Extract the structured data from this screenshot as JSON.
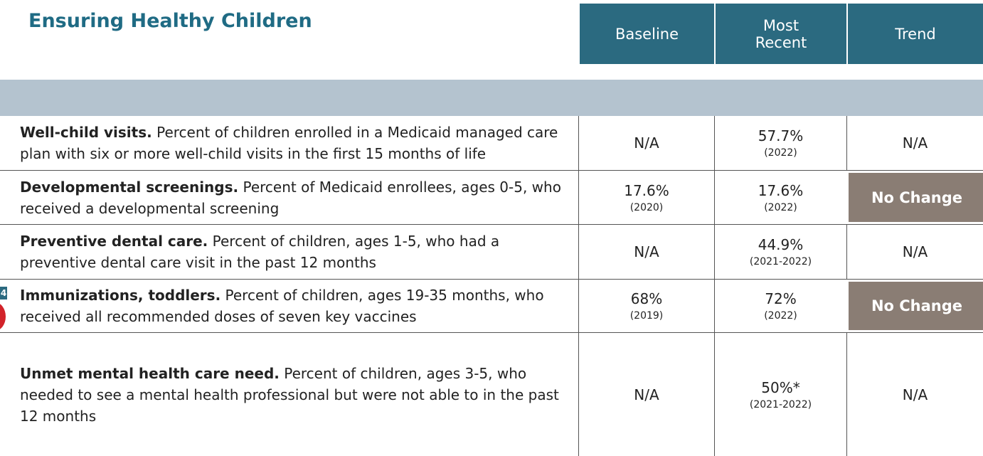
{
  "header": {
    "title": "Ensuring Healthy Children",
    "columns": [
      "Baseline",
      "Most Recent",
      "Trend"
    ]
  },
  "page_marker": "4",
  "rows": [
    {
      "name": "Well-child visits.",
      "description": "Percent of children enrolled in a Medicaid managed care plan with six or more well-child visits in the first 15 months of life",
      "baseline": {
        "value": "N/A"
      },
      "recent": {
        "value": "57.7%",
        "year": "(2022)"
      },
      "trend": "N/A"
    },
    {
      "name": "Developmental screenings.",
      "description": "Percent of Medicaid enrollees, ages 0-5, who received a developmental screening",
      "baseline": {
        "value": "17.6%",
        "year": "(2020)"
      },
      "recent": {
        "value": "17.6%",
        "year": "(2022)"
      },
      "trend": "No Change"
    },
    {
      "name": "Preventive dental care.",
      "description": "Percent of children, ages 1-5, who had a preventive dental care visit in the past 12 months",
      "baseline": {
        "value": "N/A"
      },
      "recent": {
        "value": "44.9%",
        "year": "(2021-2022)"
      },
      "trend": "N/A"
    },
    {
      "name": "Immunizations, toddlers.",
      "description": "Percent of children, ages 19-35 months, who received all recommended doses of seven key vaccines",
      "baseline": {
        "value": "68%",
        "year": "(2019)"
      },
      "recent": {
        "value": "72%",
        "year": "(2022)"
      },
      "trend": "No Change"
    },
    {
      "name": "Unmet mental health care need.",
      "description": "Percent of children, ages 3-5, who needed to see a mental health professional but were not able to in the past 12 months",
      "baseline": {
        "value": "N/A"
      },
      "recent": {
        "value": "50%*",
        "year": "(2021-2022)"
      },
      "trend": "N/A"
    }
  ]
}
